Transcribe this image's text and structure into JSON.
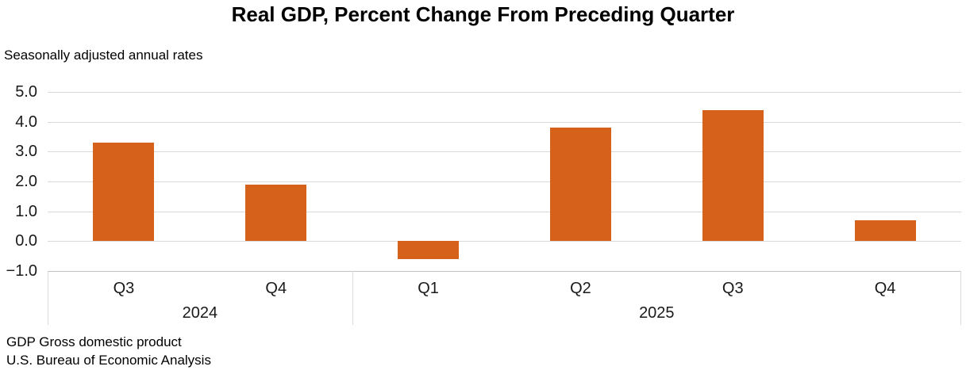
{
  "title": "Real GDP, Percent Change From Preceding Quarter",
  "subtitle": "Seasonally adjusted annual rates",
  "footnotes": [
    "GDP Gross domestic product",
    "U.S. Bureau of Economic Analysis"
  ],
  "chart_data": {
    "type": "bar",
    "title": "Real GDP, Percent Change From Preceding Quarter",
    "subtitle": "Seasonally adjusted annual rates",
    "xlabel": "",
    "ylabel": "",
    "categories": [
      "Q3",
      "Q4",
      "Q1",
      "Q2",
      "Q3",
      "Q4"
    ],
    "values": [
      3.3,
      1.9,
      -0.6,
      3.8,
      4.4,
      0.7
    ],
    "groups": [
      {
        "label": "2024",
        "span": 2
      },
      {
        "label": "2025",
        "span": 4
      }
    ],
    "ylim": [
      -1.0,
      5.0
    ],
    "y_ticks": [
      5.0,
      4.0,
      3.0,
      2.0,
      1.0,
      0.0,
      -1.0
    ],
    "y_tick_labels": [
      "5.0",
      "4.0",
      "3.0",
      "2.0",
      "1.0",
      "0.0",
      "−1.0"
    ],
    "grid": true,
    "legend": "none",
    "series_color": "#d5611a",
    "gridline_color": "#d9d9d9",
    "axis_line_color": "#c2c2c2"
  }
}
